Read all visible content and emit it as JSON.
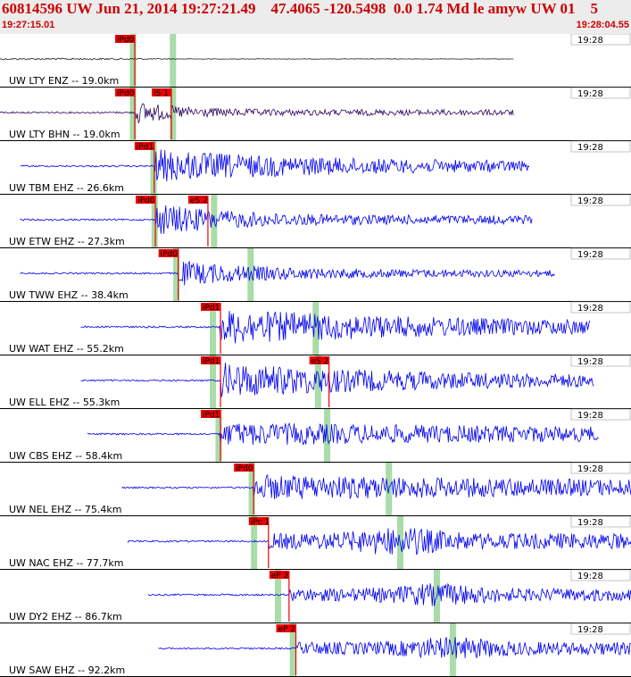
{
  "header": {
    "title": "60814596 UW Jun 21, 2014 19:27:21.49    47.4065 -120.5498  0.0 1.74 Md le amyw UW 01    5",
    "start_time": "19:27:15.01",
    "end_time": "19:28:04.55"
  },
  "colors": {
    "header_text": "#cc0000",
    "trace_black": "#222222",
    "trace_purple": "#2a0a5e",
    "trace_blue": "#0000ee",
    "pick_red": "#ee0000",
    "theoretical_green": "#a8dca8",
    "panel_line": "#000000"
  },
  "chart_data": {
    "type": "seismogram",
    "time_window": [
      "19:27:15.01",
      "19:28:04.55"
    ],
    "channels": [
      {
        "label": "UW LTY ENZ -- 19.0km",
        "station": "LTY",
        "channel": "ENZ",
        "distance_km": 19.0,
        "time_label": "19:28",
        "trace_color": "black",
        "picks": [
          {
            "phase": "iPd0",
            "time_s": 11.8
          }
        ],
        "green_marks_s": [
          11.6,
          15.1
        ],
        "trace_start_s": 0.0,
        "trace_end_s": 45.0,
        "amp": 0.05,
        "decay": 0.6
      },
      {
        "label": "UW LTY BHN -- 19.0km",
        "station": "LTY",
        "channel": "BHN",
        "distance_km": 19.0,
        "time_label": "19:28",
        "trace_color": "purple",
        "picks": [
          {
            "phase": "iPd0",
            "time_s": 11.8
          },
          {
            "phase": "iS 1",
            "time_s": 15.0
          }
        ],
        "green_marks_s": [
          11.6,
          15.1
        ],
        "trace_start_s": 0.0,
        "trace_end_s": 45.0,
        "amp": 0.55,
        "decay": 0.25
      },
      {
        "label": "UW TBM EHZ -- 26.6km",
        "station": "TBM",
        "channel": "EHZ",
        "distance_km": 26.6,
        "time_label": "19:28",
        "trace_color": "blue",
        "picks": [
          {
            "phase": "iPd1",
            "time_s": 13.5
          }
        ],
        "green_marks_s": [
          13.4
        ],
        "trace_start_s": 1.8,
        "trace_end_s": 46.4,
        "amp": 0.8,
        "decay": 0.07
      },
      {
        "label": "UW ETW EHZ -- 27.3km",
        "station": "ETW",
        "channel": "EHZ",
        "distance_km": 27.3,
        "time_label": "19:28",
        "trace_color": "blue",
        "picks": [
          {
            "phase": "iPd0",
            "time_s": 13.6
          },
          {
            "phase": "eS 2",
            "time_s": 18.2
          }
        ],
        "green_marks_s": [
          13.5,
          18.7
        ],
        "trace_start_s": 1.8,
        "trace_end_s": 46.6,
        "amp": 0.8,
        "decay": 0.16
      },
      {
        "label": "UW TWW EHZ -- 38.4km",
        "station": "TWW",
        "channel": "EHZ",
        "distance_km": 38.4,
        "time_label": "19:28",
        "trace_color": "blue",
        "picks": [
          {
            "phase": "iPd0",
            "time_s": 15.6
          }
        ],
        "green_marks_s": [
          15.4,
          21.9
        ],
        "trace_start_s": 1.8,
        "trace_end_s": 48.6,
        "amp": 0.6,
        "decay": 0.12
      },
      {
        "label": "UW WAT EHZ -- 55.2km",
        "station": "WAT",
        "channel": "EHZ",
        "distance_km": 55.2,
        "time_label": "19:28",
        "trace_color": "blue",
        "picks": [
          {
            "phase": "iPd1",
            "time_s": 19.3
          }
        ],
        "green_marks_s": [
          18.6,
          27.6
        ],
        "trace_start_s": 7.1,
        "trace_end_s": 51.7,
        "amp": 0.85,
        "decay": 0.05
      },
      {
        "label": "UW ELL EHZ -- 55.3km",
        "station": "ELL",
        "channel": "EHZ",
        "distance_km": 55.3,
        "time_label": "19:28",
        "trace_color": "blue",
        "picks": [
          {
            "phase": "iPd1",
            "time_s": 19.3
          },
          {
            "phase": "eS 2",
            "time_s": 28.8
          }
        ],
        "green_marks_s": [
          18.6,
          27.8
        ],
        "trace_start_s": 7.1,
        "trace_end_s": 52.0,
        "amp": 0.85,
        "decay": 0.06
      },
      {
        "label": "UW CBS EHZ -- 58.4km",
        "station": "CBS",
        "channel": "EHZ",
        "distance_km": 58.4,
        "time_label": "19:28",
        "trace_color": "blue",
        "picks": [
          {
            "phase": "iPd1",
            "time_s": 19.3
          }
        ],
        "green_marks_s": [
          19.1,
          28.6
        ],
        "trace_start_s": 7.7,
        "trace_end_s": 52.4,
        "amp": 0.55,
        "decay": 0.02
      },
      {
        "label": "UW NEL EHZ -- 75.4km",
        "station": "NEL",
        "channel": "EHZ",
        "distance_km": 75.4,
        "time_label": "19:28",
        "trace_color": "blue",
        "picks": [
          {
            "phase": "iPd0",
            "time_s": 22.2
          }
        ],
        "green_marks_s": [
          22.0,
          34.0
        ],
        "trace_start_s": 10.7,
        "trace_end_s": 56.7,
        "amp": 0.6,
        "decay": 0.02
      },
      {
        "label": "UW NAC EHZ -- 77.7km",
        "station": "NAC",
        "channel": "EHZ",
        "distance_km": 77.7,
        "time_label": "19:28",
        "trace_color": "blue",
        "picks": [
          {
            "phase": "iPc 1",
            "time_s": 23.5
          }
        ],
        "green_marks_s": [
          22.2,
          35.0
        ],
        "trace_start_s": 11.2,
        "trace_end_s": 56.4,
        "amp": 0.75,
        "decay": 0.0
      },
      {
        "label": "UW DY2 EHZ -- 86.7km",
        "station": "DY2",
        "channel": "EHZ",
        "distance_km": 86.7,
        "time_label": "19:28",
        "trace_color": "blue",
        "picks": [
          {
            "phase": "eP 2",
            "time_s": 25.3
          }
        ],
        "green_marks_s": [
          24.3,
          38.2
        ],
        "trace_start_s": 13.0,
        "trace_end_s": 57.6,
        "amp": 0.6,
        "decay": 0.0
      },
      {
        "label": "UW SAW EHZ -- 92.2km",
        "station": "SAW",
        "channel": "EHZ",
        "distance_km": 92.2,
        "time_label": "19:28",
        "trace_color": "blue",
        "picks": [
          {
            "phase": "eP 2",
            "time_s": 25.9
          }
        ],
        "green_marks_s": [
          25.6,
          39.6
        ],
        "trace_start_s": 13.9,
        "trace_end_s": 58.0,
        "amp": 0.6,
        "decay": 0.0
      }
    ]
  }
}
